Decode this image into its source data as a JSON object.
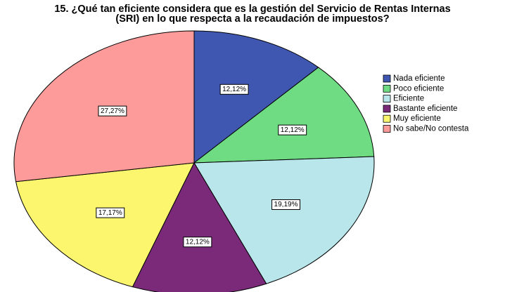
{
  "chart_data": {
    "type": "pie",
    "title": [
      "15. ¿Qué tan eficiente considera que es la gestión del Servicio de Rentas Internas",
      "(SRI) en lo que respecta a la recaudación de impuestos?"
    ],
    "categories": [
      "Nada eficiente",
      "Poco eficiente",
      "Eficiente",
      "Bastante eficiente",
      "Muy eficiente",
      "No sabe/No contesta"
    ],
    "values": [
      12.12,
      12.12,
      19.19,
      12.12,
      17.17,
      27.27
    ],
    "value_labels": [
      "12,12%",
      "12,12%",
      "19,19%",
      "12,12%",
      "17,17%",
      "27,27%"
    ],
    "colors": [
      "#3f57b0",
      "#6fdc84",
      "#b8e6ea",
      "#7b2a7a",
      "#fbf66e",
      "#fc9b99"
    ],
    "legend": "right"
  }
}
